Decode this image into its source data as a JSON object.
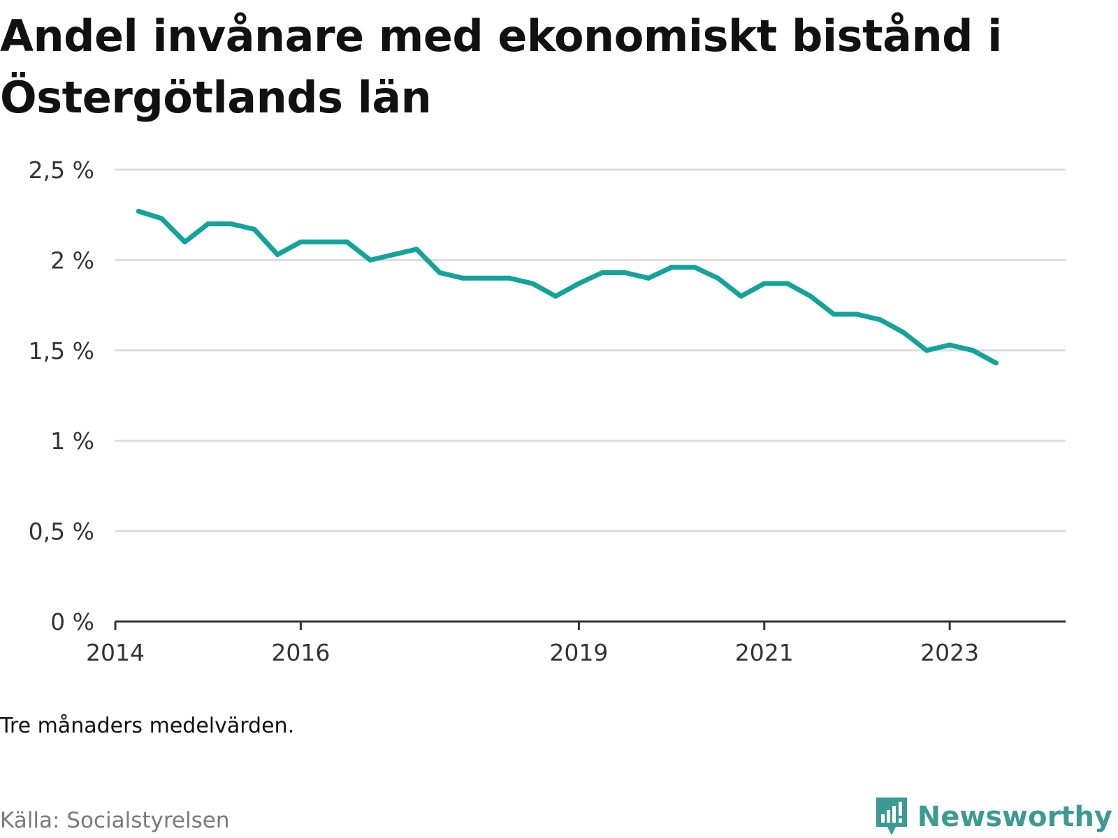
{
  "title": "Andel invånare med ekonomiskt bistånd i Östergötlands län",
  "note": "Tre månaders medelvärden.",
  "source": "Källa: Socialstyrelsen",
  "brand": {
    "name": "Newsworthy",
    "icon": "newsworthy-logo-icon",
    "color": "#3d9a93"
  },
  "colors": {
    "line": "#14a39a",
    "grid": "#dddddd",
    "axis": "#333333"
  },
  "chart_data": {
    "type": "line",
    "title": "Andel invånare med ekonomiskt bistånd i Östergötlands län",
    "xlabel": "",
    "ylabel": "",
    "ylim": [
      0,
      2.5
    ],
    "y_ticks": [
      0,
      0.5,
      1,
      1.5,
      2,
      2.5
    ],
    "y_tick_labels": [
      "0 %",
      "0,5 %",
      "1 %",
      "1,5 %",
      "2 %",
      "2,5 %"
    ],
    "xlim": [
      "2014-01",
      "2024-04"
    ],
    "x_tick_labels": [
      "2014",
      "2016",
      "2019",
      "2021",
      "2023"
    ],
    "x_ticks": [
      "2014-01",
      "2016-01",
      "2019-01",
      "2021-01",
      "2023-01"
    ],
    "grid": true,
    "legend": false,
    "series": [
      {
        "x": [
          "2014-04",
          "2014-07",
          "2014-10",
          "2015-01",
          "2015-04",
          "2015-07",
          "2015-10",
          "2016-01",
          "2016-04",
          "2016-07",
          "2016-10",
          "2017-01",
          "2017-04",
          "2017-07",
          "2017-10",
          "2018-01",
          "2018-04",
          "2018-07",
          "2018-10",
          "2019-01",
          "2019-04",
          "2019-07",
          "2019-10",
          "2020-01",
          "2020-04",
          "2020-07",
          "2020-10",
          "2021-01",
          "2021-04",
          "2021-07",
          "2021-10",
          "2022-01",
          "2022-04",
          "2022-07",
          "2022-10",
          "2023-01",
          "2023-04",
          "2023-07"
        ],
        "values": [
          2.27,
          2.23,
          2.1,
          2.2,
          2.2,
          2.17,
          2.03,
          2.1,
          2.1,
          2.1,
          2.0,
          2.03,
          2.06,
          1.93,
          1.9,
          1.9,
          1.9,
          1.87,
          1.8,
          1.87,
          1.93,
          1.93,
          1.9,
          1.96,
          1.96,
          1.9,
          1.8,
          1.87,
          1.87,
          1.8,
          1.7,
          1.7,
          1.67,
          1.6,
          1.5,
          1.53,
          1.5,
          1.43
        ]
      }
    ]
  }
}
